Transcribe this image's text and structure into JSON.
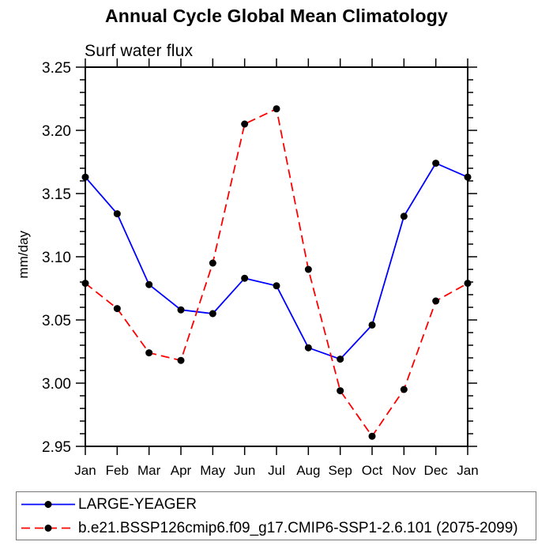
{
  "chart_data": {
    "type": "line",
    "title": "Annual Cycle Global Mean Climatology",
    "subtitle": "Surf water flux",
    "xlabel": "",
    "ylabel": "mm/day",
    "categories": [
      "Jan",
      "Feb",
      "Mar",
      "Apr",
      "May",
      "Jun",
      "Jul",
      "Aug",
      "Sep",
      "Oct",
      "Nov",
      "Dec",
      "Jan"
    ],
    "ylim": [
      2.95,
      3.25
    ],
    "ytick_labels": [
      "2.95",
      "3.00",
      "3.05",
      "3.10",
      "3.15",
      "3.20",
      "3.25"
    ],
    "ytick_major_step": 0.05,
    "ytick_minor_step": 0.01,
    "grid": false,
    "legend_position": "bottom-left-box",
    "frame_color": "#000000",
    "marker": "filled-circle-black",
    "marker_color": "#000000",
    "series": [
      {
        "name": "LARGE-YEAGER",
        "color": "#0000ff",
        "line_style": "solid",
        "values": [
          3.163,
          3.134,
          3.078,
          3.058,
          3.055,
          3.083,
          3.077,
          3.028,
          3.019,
          3.046,
          3.132,
          3.174,
          3.163
        ]
      },
      {
        "name": "b.e21.BSSP126cmip6.f09_g17.CMIP6-SSP1-2.6.101 (2075-2099)",
        "color": "#ff0000",
        "line_style": "dashed",
        "values": [
          3.079,
          3.059,
          3.024,
          3.018,
          3.095,
          3.205,
          3.217,
          3.09,
          2.994,
          2.958,
          2.995,
          3.065,
          3.079
        ]
      }
    ]
  }
}
